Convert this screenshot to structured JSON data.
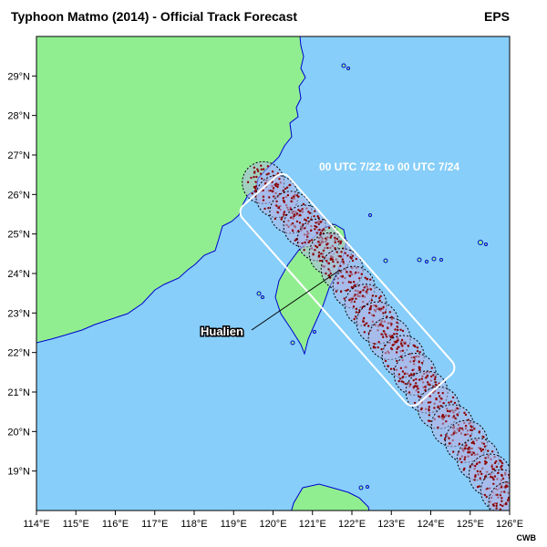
{
  "title": "Typhoon Matmo (2014) - Official Track Forecast",
  "tag": "EPS",
  "credit": "CWB",
  "annotation_window": "00 UTC 7/22 to 00 UTC 7/24",
  "annotation_city": "Hualien",
  "colors": {
    "ocean": "#87cefa",
    "land": "#90ee90",
    "coast": "#0000cd",
    "member_dot": "#8b0000",
    "circle_fill": "#b0b8e8",
    "box": "#ffffff"
  },
  "axes": {
    "lon_ticks": [
      "114°E",
      "115°E",
      "116°E",
      "117°E",
      "118°E",
      "119°E",
      "120°E",
      "121°E",
      "122°E",
      "123°E",
      "124°E",
      "125°E",
      "126°E"
    ],
    "lat_ticks": [
      "19°N",
      "20°N",
      "21°N",
      "22°N",
      "23°N",
      "24°N",
      "25°N",
      "26°N",
      "27°N",
      "28°N",
      "29°N"
    ],
    "lon_range": [
      114,
      126
    ],
    "lat_range": [
      18.0,
      30.0
    ]
  },
  "track_centers": [
    [
      119.75,
      26.3
    ],
    [
      120.1,
      25.95
    ],
    [
      120.45,
      25.55
    ],
    [
      120.8,
      25.2
    ],
    [
      121.15,
      24.85
    ],
    [
      121.45,
      24.5
    ],
    [
      121.75,
      24.1
    ],
    [
      122.05,
      23.65
    ],
    [
      122.35,
      23.2
    ],
    [
      122.65,
      22.75
    ],
    [
      122.95,
      22.35
    ],
    [
      123.3,
      21.9
    ],
    [
      123.6,
      21.45
    ],
    [
      123.9,
      21.0
    ],
    [
      124.2,
      20.6
    ],
    [
      124.55,
      20.15
    ],
    [
      124.9,
      19.75
    ],
    [
      125.2,
      19.3
    ],
    [
      125.5,
      18.9
    ],
    [
      125.8,
      18.5
    ],
    [
      126.0,
      18.2
    ]
  ]
}
